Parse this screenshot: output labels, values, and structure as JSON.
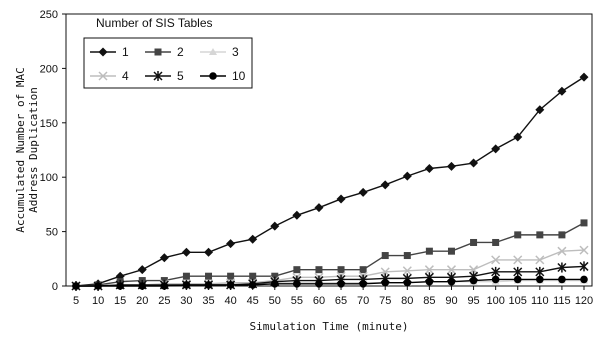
{
  "chart_data": {
    "type": "line",
    "xlabel": "Simulation Time (minute)",
    "ylabel": [
      "Accumulated Number of MAC",
      "Address Duplication"
    ],
    "legend_title": "Number of SIS Tables",
    "legend_position": "top-left",
    "grid": false,
    "xlim": [
      5,
      120
    ],
    "ylim": [
      0,
      250
    ],
    "yticks": [
      0,
      50,
      100,
      150,
      200,
      250
    ],
    "x": [
      5,
      10,
      15,
      20,
      25,
      30,
      35,
      40,
      45,
      50,
      55,
      60,
      65,
      70,
      75,
      80,
      85,
      90,
      95,
      100,
      105,
      110,
      115,
      120
    ],
    "series": [
      {
        "name": "1",
        "marker": "diamond",
        "color": "#111111",
        "values": [
          0,
          2,
          9,
          15,
          26,
          31,
          31,
          39,
          43,
          55,
          65,
          72,
          80,
          86,
          93,
          101,
          108,
          110,
          113,
          126,
          137,
          162,
          179,
          192
        ]
      },
      {
        "name": "2",
        "marker": "square",
        "color": "#444444",
        "values": [
          0,
          1,
          4,
          5,
          5,
          9,
          9,
          9,
          9,
          9,
          15,
          15,
          15,
          15,
          28,
          28,
          32,
          32,
          40,
          40,
          47,
          47,
          47,
          58
        ]
      },
      {
        "name": "3",
        "marker": "triangle",
        "color": "#d6d6d6",
        "values": [
          0,
          0,
          1,
          1,
          1,
          2,
          2,
          2,
          2,
          3,
          3,
          3,
          3,
          3,
          3,
          3,
          4,
          4,
          4,
          4,
          5,
          5,
          5,
          5
        ]
      },
      {
        "name": "4",
        "marker": "x",
        "color": "#bdbdbd",
        "values": [
          0,
          0,
          1,
          1,
          2,
          2,
          2,
          3,
          3,
          5,
          8,
          8,
          9,
          9,
          13,
          14,
          15,
          15,
          15,
          24,
          24,
          24,
          32,
          33
        ]
      },
      {
        "name": "5",
        "marker": "star",
        "color": "#111111",
        "values": [
          0,
          0,
          1,
          1,
          1,
          1,
          1,
          1,
          2,
          4,
          5,
          5,
          6,
          6,
          7,
          7,
          8,
          8,
          9,
          13,
          13,
          13,
          17,
          18
        ]
      },
      {
        "name": "10",
        "marker": "circle",
        "color": "#000000",
        "values": [
          0,
          0,
          0,
          0,
          0,
          1,
          1,
          1,
          1,
          2,
          2,
          2,
          2,
          2,
          3,
          3,
          4,
          4,
          5,
          6,
          6,
          6,
          6,
          6
        ]
      }
    ]
  }
}
